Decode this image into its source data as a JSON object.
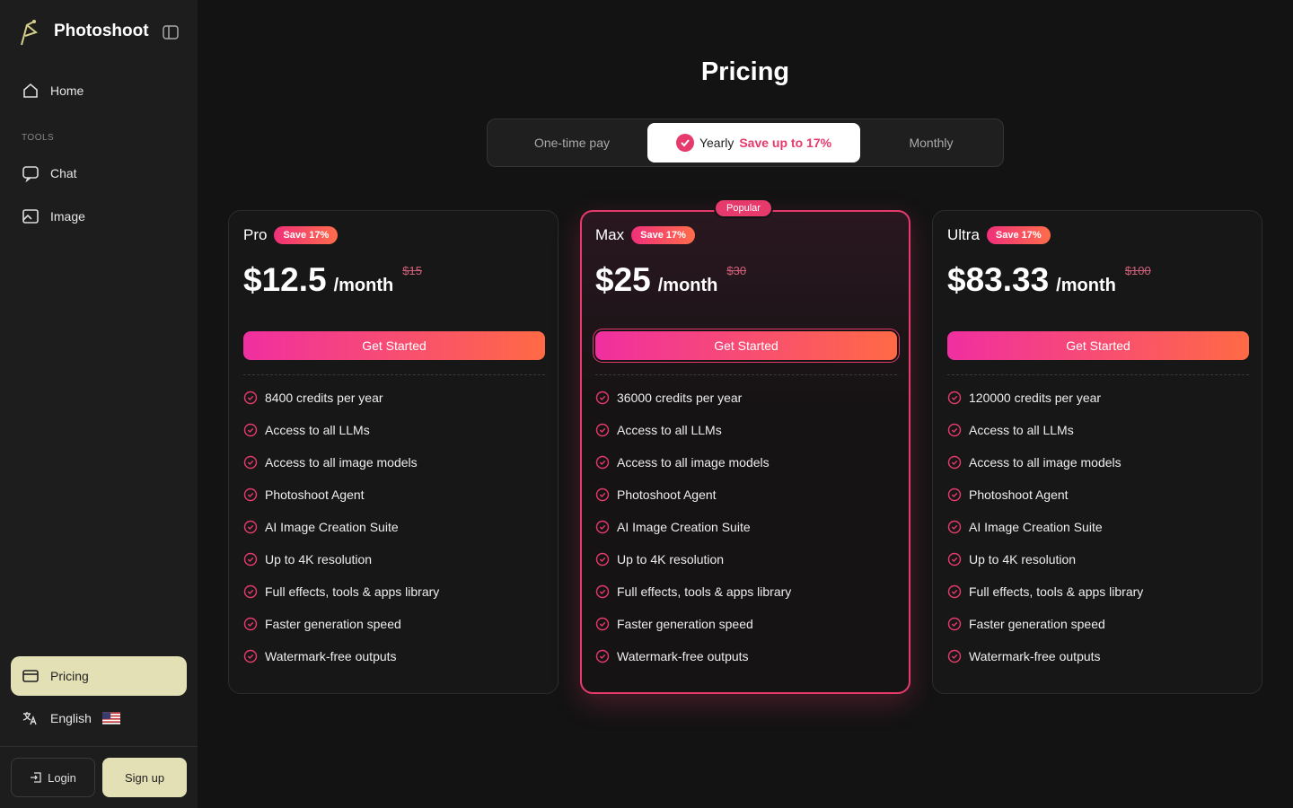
{
  "sidebar": {
    "brand": "Photoshoot",
    "nav": [
      "Home"
    ],
    "section": "TOOLS",
    "tools": [
      "Chat",
      "Image"
    ],
    "pricing": "Pricing",
    "language": "English",
    "login": "Login",
    "signup": "Sign up"
  },
  "main": {
    "title": "Pricing",
    "tabs": [
      {
        "label": "One-time pay"
      },
      {
        "label": "Yearly",
        "note": "Save up to 17%"
      },
      {
        "label": "Monthly"
      }
    ],
    "popular": "Popular",
    "plans": [
      {
        "name": "Pro",
        "badge": "Save 17%",
        "price": "$12.5",
        "period": "/month",
        "old_price": "$15",
        "cta": "Get Started",
        "features": [
          "8400 credits per year",
          "Access to all LLMs",
          "Access to all image models",
          "Photoshoot Agent",
          "AI Image Creation Suite",
          "Up to 4K resolution",
          "Full effects, tools & apps library",
          "Faster generation speed",
          "Watermark-free outputs"
        ]
      },
      {
        "name": "Max",
        "badge": "Save 17%",
        "price": "$25",
        "period": "/month",
        "old_price": "$30",
        "cta": "Get Started",
        "features": [
          "36000 credits per year",
          "Access to all LLMs",
          "Access to all image models",
          "Photoshoot Agent",
          "AI Image Creation Suite",
          "Up to 4K resolution",
          "Full effects, tools & apps library",
          "Faster generation speed",
          "Watermark-free outputs"
        ]
      },
      {
        "name": "Ultra",
        "badge": "Save 17%",
        "price": "$83.33",
        "period": "/month",
        "old_price": "$100",
        "cta": "Get Started",
        "features": [
          "120000 credits per year",
          "Access to all LLMs",
          "Access to all image models",
          "Photoshoot Agent",
          "AI Image Creation Suite",
          "Up to 4K resolution",
          "Full effects, tools & apps library",
          "Faster generation speed",
          "Watermark-free outputs"
        ]
      }
    ]
  }
}
